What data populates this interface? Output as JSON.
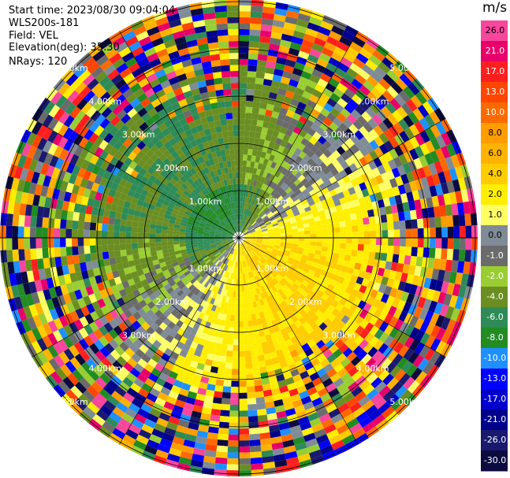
{
  "header": {
    "start_time": "Start time: 2023/08/30 09:04:04",
    "instrument": "WLS200s-181",
    "field": "Field: VEL",
    "elevation": "Elevation(deg): 35.30",
    "nrays": "NRays: 120"
  },
  "colorbar": {
    "title": "m/s",
    "labels": [
      "26.0",
      "21.0",
      "17.0",
      "13.0",
      "10.0",
      "8.0",
      "6.0",
      "4.0",
      "2.0",
      "1.0",
      "0.0",
      "-1.0",
      "-2.0",
      "-4.0",
      "-6.0",
      "-8.0",
      "-10.0",
      "-13.0",
      "-17.0",
      "-21.0",
      "-26.0",
      "-30.0"
    ],
    "colors": [
      "#f7469b",
      "#e8006a",
      "#ff1f1f",
      "#ff4500",
      "#ff6a00",
      "#ff9d00",
      "#ffb300",
      "#ffcc00",
      "#ffee00",
      "#ffff66",
      "#7f8b97",
      "#6b6b6b",
      "#9acd32",
      "#6b8e23",
      "#2e8b57",
      "#228b22",
      "#1e90ff",
      "#0000ff",
      "#0000cd",
      "#00008b",
      "#191970",
      "#0b0b40"
    ]
  },
  "chart_data": {
    "type": "heatmap",
    "projection": "polar PPI",
    "field": "VEL",
    "units": "m/s",
    "nrays": 120,
    "range_rings_km": [
      1.0,
      2.0,
      3.0,
      4.0,
      5.0
    ],
    "ring_label_text": [
      "1.00km",
      "2.00km",
      "3.00km",
      "4.00km",
      "5.00km"
    ],
    "color_levels": [
      -30.0,
      -26.0,
      -21.0,
      -17.0,
      -13.0,
      -10.0,
      -8.0,
      -6.0,
      -4.0,
      -2.0,
      -1.0,
      0.0,
      1.0,
      2.0,
      4.0,
      6.0,
      8.0,
      10.0,
      13.0,
      17.0,
      21.0,
      26.0
    ],
    "velocity_pattern": {
      "near_center_dominant": "-6 to -2 m/s (green) toward upper-left; 2 to 6 m/s (yellow/orange) toward lower-right",
      "outer_region": "noisy, all colors across full scale"
    }
  }
}
